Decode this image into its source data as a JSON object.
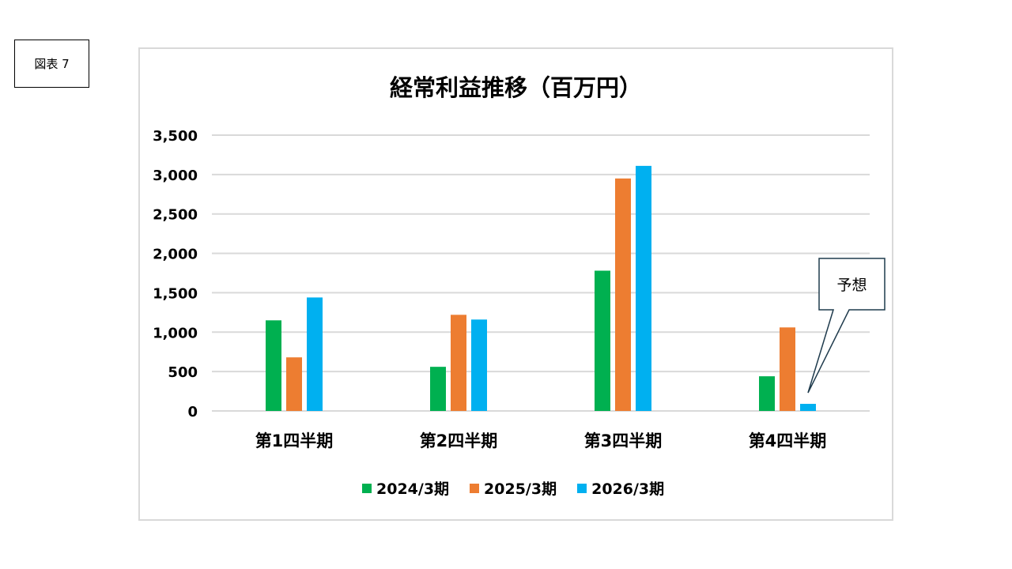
{
  "figure_label": "図表 7",
  "callout": "予想",
  "colors": {
    "2024": "#00b050",
    "2025": "#ed7d31",
    "2026": "#00b0f0",
    "grid": "#d9d9d9",
    "frame": "#d9d9d9"
  },
  "chart_data": {
    "type": "bar",
    "title": "経常利益推移（百万円）",
    "categories": [
      "第1四半期",
      "第2四半期",
      "第3四半期",
      "第4四半期"
    ],
    "series": [
      {
        "name": "2024/3期",
        "values": [
          1150,
          560,
          1780,
          440
        ]
      },
      {
        "name": "2025/3期",
        "values": [
          680,
          1220,
          2950,
          1060
        ]
      },
      {
        "name": "2026/3期",
        "values": [
          1440,
          1160,
          3110,
          90
        ]
      }
    ],
    "ylim": [
      0,
      3500
    ],
    "yticks": [
      "0",
      "500",
      "1,000",
      "1,500",
      "2,000",
      "2,500",
      "3,000",
      "3,500"
    ],
    "grid": true,
    "legend_position": "bottom"
  }
}
